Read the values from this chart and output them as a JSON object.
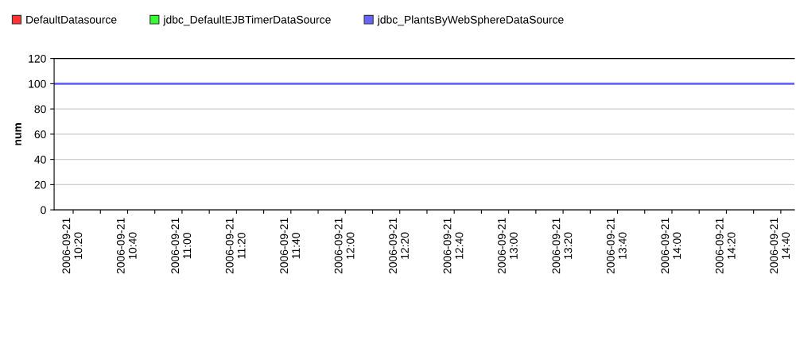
{
  "chart_data": {
    "type": "line",
    "ylabel": "num",
    "xlim": [
      "2006-09-21T10:13",
      "2006-09-21T14:45"
    ],
    "xticks": [
      {
        "value": "2006-09-21T10:20",
        "label": "2006-09-21\n10:20"
      },
      {
        "value": "2006-09-21T10:30",
        "label": null
      },
      {
        "value": "2006-09-21T10:40",
        "label": "2006-09-21\n10:40"
      },
      {
        "value": "2006-09-21T10:50",
        "label": null
      },
      {
        "value": "2006-09-21T11:00",
        "label": "2006-09-21\n11:00"
      },
      {
        "value": "2006-09-21T11:10",
        "label": null
      },
      {
        "value": "2006-09-21T11:20",
        "label": "2006-09-21\n11:20"
      },
      {
        "value": "2006-09-21T11:30",
        "label": null
      },
      {
        "value": "2006-09-21T11:40",
        "label": "2006-09-21\n11:40"
      },
      {
        "value": "2006-09-21T11:50",
        "label": null
      },
      {
        "value": "2006-09-21T12:00",
        "label": "2006-09-21\n12:00"
      },
      {
        "value": "2006-09-21T12:10",
        "label": null
      },
      {
        "value": "2006-09-21T12:20",
        "label": "2006-09-21\n12:20"
      },
      {
        "value": "2006-09-21T12:30",
        "label": null
      },
      {
        "value": "2006-09-21T12:40",
        "label": "2006-09-21\n12:40"
      },
      {
        "value": "2006-09-21T12:50",
        "label": null
      },
      {
        "value": "2006-09-21T13:00",
        "label": "2006-09-21\n13:00"
      },
      {
        "value": "2006-09-21T13:10",
        "label": null
      },
      {
        "value": "2006-09-21T13:20",
        "label": "2006-09-21\n13:20"
      },
      {
        "value": "2006-09-21T13:30",
        "label": null
      },
      {
        "value": "2006-09-21T13:40",
        "label": "2006-09-21\n13:40"
      },
      {
        "value": "2006-09-21T13:50",
        "label": null
      },
      {
        "value": "2006-09-21T14:00",
        "label": "2006-09-21\n14:00"
      },
      {
        "value": "2006-09-21T14:10",
        "label": null
      },
      {
        "value": "2006-09-21T14:20",
        "label": "2006-09-21\n14:20"
      },
      {
        "value": "2006-09-21T14:30",
        "label": null
      },
      {
        "value": "2006-09-21T14:40",
        "label": "2006-09-21\n14:40"
      }
    ],
    "ylim": [
      0,
      120
    ],
    "yticks": [
      0,
      20,
      40,
      60,
      80,
      100,
      120
    ],
    "grid": "y",
    "legend": "top",
    "marker": "none",
    "line_style": "solid",
    "x": [
      "2006-09-21T10:13",
      "2006-09-21T14:45"
    ],
    "series": [
      {
        "name": "DefaultDatasource",
        "color": "#ff3333",
        "values": [
          null,
          null
        ]
      },
      {
        "name": "jdbc_DefaultEJBTimerDataSource",
        "color": "#33ff33",
        "values": [
          null,
          null
        ]
      },
      {
        "name": "jdbc_PlantsByWebSphereDataSource",
        "color": "#6666ff",
        "values": [
          100,
          100
        ]
      }
    ]
  }
}
